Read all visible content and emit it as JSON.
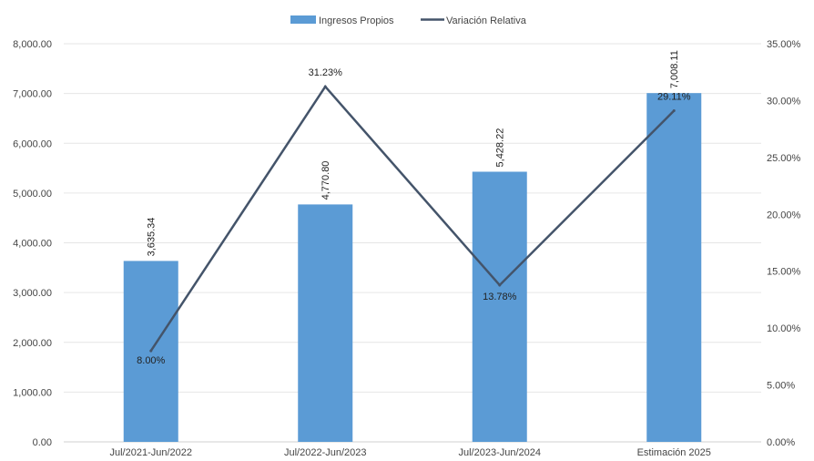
{
  "chart_data": {
    "type": "bar",
    "title": "",
    "categories": [
      "Jul/2021-Jun/2022",
      "Jul/2022-Jun/2023",
      "Jul/2023-Jun/2024",
      "Estimación 2025"
    ],
    "series": [
      {
        "name": "Ingresos Propios",
        "type": "bar",
        "axis": "left",
        "color": "#5b9bd5",
        "values": [
          3635.34,
          4770.8,
          5428.22,
          7008.11
        ],
        "labels": [
          "3,635.34",
          "4,770.80",
          "5,428.22",
          "7,008.11"
        ]
      },
      {
        "name": "Variación Relativa",
        "type": "line",
        "axis": "right",
        "color": "#44546a",
        "values": [
          8.0,
          31.23,
          13.78,
          29.11
        ],
        "labels": [
          "8.00%",
          "31.23%",
          "13.78%",
          "29.11%"
        ]
      }
    ],
    "y_left": {
      "range": [
        0,
        8000
      ],
      "ticks": [
        0,
        1000,
        2000,
        3000,
        4000,
        5000,
        6000,
        7000,
        8000
      ],
      "tick_labels": [
        "0.00",
        "1,000.00",
        "2,000.00",
        "3,000.00",
        "4,000.00",
        "5,000.00",
        "6,000.00",
        "7,000.00",
        "8,000.00"
      ]
    },
    "y_right": {
      "range": [
        0,
        35
      ],
      "ticks": [
        0,
        5,
        10,
        15,
        20,
        25,
        30,
        35
      ],
      "tick_labels": [
        "0.00%",
        "5.00%",
        "10.00%",
        "15.00%",
        "20.00%",
        "25.00%",
        "30.00%",
        "35.00%"
      ]
    },
    "grid": true,
    "legend_position": "top-center"
  }
}
